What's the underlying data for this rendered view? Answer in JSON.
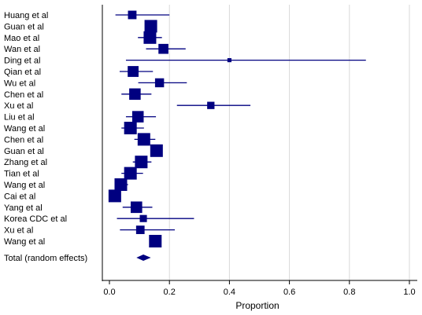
{
  "chart_data": {
    "type": "forest",
    "xlabel": "Proportion",
    "xlim": [
      0.0,
      1.0
    ],
    "xticks": [
      "0.0",
      "0.2",
      "0.4",
      "0.6",
      "0.8",
      "1.0"
    ],
    "grid": "vertical",
    "marker_color": "#000080",
    "studies": [
      {
        "label": "Huang et al",
        "estimate": 0.076,
        "ci": [
          0.02,
          0.2
        ]
      },
      {
        "label": "Guan et al",
        "estimate": 0.138,
        "ci": [
          0.125,
          0.152
        ]
      },
      {
        "label": "Mao et al",
        "estimate": 0.135,
        "ci": [
          0.095,
          0.175
        ]
      },
      {
        "label": "Wan et al",
        "estimate": 0.18,
        "ci": [
          0.122,
          0.254
        ]
      },
      {
        "label": "Ding et al",
        "estimate": 0.4,
        "ci": [
          0.055,
          0.855
        ]
      },
      {
        "label": "Qian et al",
        "estimate": 0.079,
        "ci": [
          0.034,
          0.145
        ]
      },
      {
        "label": "Wu et al",
        "estimate": 0.167,
        "ci": [
          0.096,
          0.258
        ]
      },
      {
        "label": "Chen et al",
        "estimate": 0.085,
        "ci": [
          0.04,
          0.14
        ]
      },
      {
        "label": "Xu et al",
        "estimate": 0.338,
        "ci": [
          0.225,
          0.47
        ]
      },
      {
        "label": "Liu et al",
        "estimate": 0.095,
        "ci": [
          0.055,
          0.155
        ]
      },
      {
        "label": "Wang et al",
        "estimate": 0.07,
        "ci": [
          0.04,
          0.115
        ]
      },
      {
        "label": "Chen et al",
        "estimate": 0.115,
        "ci": [
          0.083,
          0.153
        ]
      },
      {
        "label": "Guan et al",
        "estimate": 0.157,
        "ci": [
          0.145,
          0.17
        ]
      },
      {
        "label": "Zhang et al",
        "estimate": 0.106,
        "ci": [
          0.078,
          0.14
        ]
      },
      {
        "label": "Tian et al",
        "estimate": 0.07,
        "ci": [
          0.04,
          0.112
        ]
      },
      {
        "label": "Wang et al",
        "estimate": 0.038,
        "ci": [
          0.022,
          0.062
        ]
      },
      {
        "label": "Cai et al",
        "estimate": 0.018,
        "ci": [
          0.008,
          0.038
        ]
      },
      {
        "label": "Yang et al",
        "estimate": 0.09,
        "ci": [
          0.044,
          0.143
        ]
      },
      {
        "label": "Korea CDC et al",
        "estimate": 0.113,
        "ci": [
          0.025,
          0.282
        ]
      },
      {
        "label": "Xu et al",
        "estimate": 0.103,
        "ci": [
          0.035,
          0.218
        ]
      },
      {
        "label": "Wang et al",
        "estimate": 0.153,
        "ci": [
          0.147,
          0.159
        ]
      }
    ],
    "pooled": {
      "label": "Total (random effects)",
      "estimate": 0.113,
      "ci": [
        0.09,
        0.138
      ]
    }
  }
}
